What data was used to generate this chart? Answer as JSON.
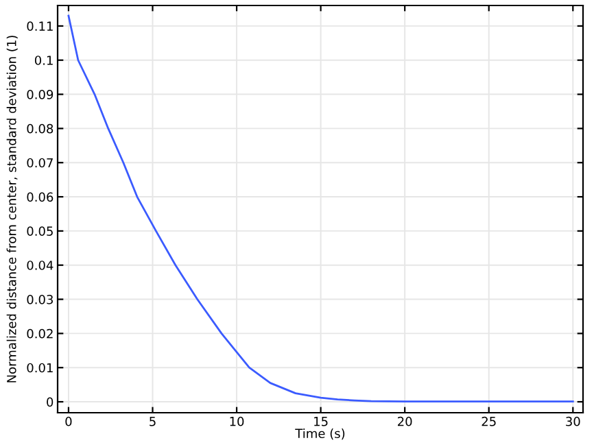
{
  "chart_data": {
    "type": "line",
    "xlabel": "Time (s)",
    "ylabel": "Normalized distance from center, standard deviation (1)",
    "x": [
      0,
      0.57,
      1.55,
      2.36,
      3.26,
      4.08,
      5.2,
      6.36,
      7.66,
      9.1,
      10.75,
      12,
      13.5,
      15,
      16,
      17,
      18,
      20,
      25,
      30
    ],
    "series": [
      {
        "color": "#3b5bff",
        "values": [
          0.113,
          0.1,
          0.09,
          0.08,
          0.07,
          0.06,
          0.05,
          0.04,
          0.03,
          0.02,
          0.01,
          0.0055,
          0.0025,
          0.0012,
          0.0007,
          0.0004,
          0.0002,
          0.0001,
          0.0001,
          0.0001
        ]
      }
    ],
    "xlim": [
      -0.65,
      30.6
    ],
    "ylim": [
      -0.0032,
      0.116
    ],
    "xticks": [
      0,
      5,
      10,
      15,
      20,
      25,
      30
    ],
    "yticks": [
      0,
      0.01,
      0.02,
      0.03,
      0.04,
      0.05,
      0.06,
      0.07,
      0.08,
      0.09,
      0.1,
      0.11
    ],
    "grid": true,
    "marker": "none",
    "line_style": "solid"
  }
}
